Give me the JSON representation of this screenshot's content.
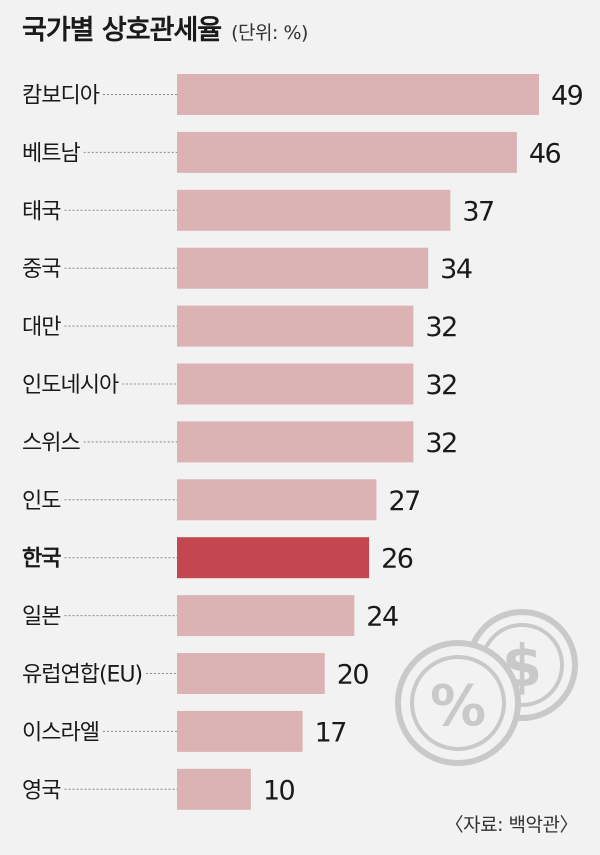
{
  "title": "국가별 상호관세율",
  "unit_note": "(단위: %)",
  "source": "〈자료: 백악관〉",
  "colors": {
    "bar": "#dbb3b5",
    "highlight_bar": "#c2474f",
    "background": "#f2f2f2",
    "icon": "#c9c9c9"
  },
  "icons": [
    "percent-coin-icon",
    "dollar-coin-icon"
  ],
  "chart_data": {
    "type": "bar",
    "orientation": "horizontal",
    "categories": [
      "캄보디아",
      "베트남",
      "태국",
      "중국",
      "대만",
      "인도네시아",
      "스위스",
      "인도",
      "한국",
      "일본",
      "유럽연합(EU)",
      "이스라엘",
      "영국"
    ],
    "values": [
      49,
      46,
      37,
      34,
      32,
      32,
      32,
      27,
      26,
      24,
      20,
      17,
      10
    ],
    "highlight": "한국",
    "xlim": [
      0,
      49
    ],
    "grid": false,
    "data_labels": true
  }
}
